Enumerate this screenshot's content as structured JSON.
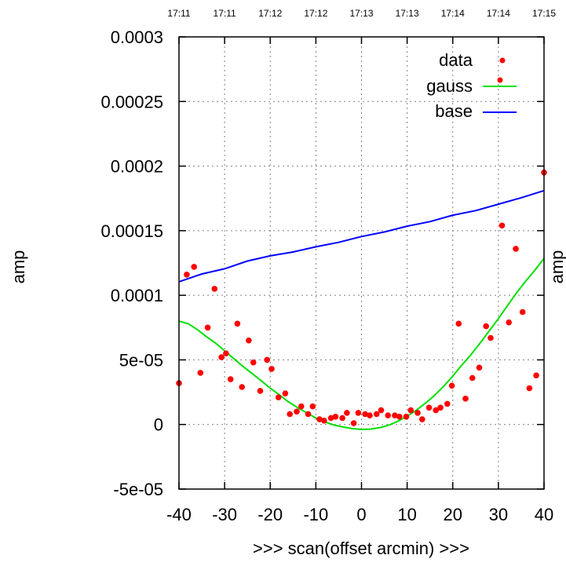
{
  "chart_data": {
    "type": "scatter",
    "xlabel": ">>> scan(offset arcmin) >>>",
    "ylabel": "amp",
    "ylabel_right": "amp",
    "xlim": [
      -40,
      40
    ],
    "ylim": [
      -5e-05,
      0.0003
    ],
    "grid": true,
    "legend_position": "top-right",
    "x_ticks": [
      -40,
      -30,
      -20,
      -10,
      0,
      10,
      20,
      30,
      40
    ],
    "x_tick_labels": [
      "-40",
      "-30",
      "-20",
      "-10",
      "0",
      "10",
      "20",
      "30",
      "40"
    ],
    "y_ticks": [
      -5e-05,
      0,
      5e-05,
      0.0001,
      0.00015,
      0.0002,
      0.00025,
      0.0003
    ],
    "y_tick_labels": [
      "-5e-05",
      "0",
      "5e-05",
      "0.0001",
      "0.00015",
      "0.0002",
      "0.00025",
      "0.0003"
    ],
    "top_time_labels": [
      "17:11",
      "17:11",
      "17:12",
      "17:12",
      "17:13",
      "17:13",
      "17:14",
      "17:14",
      "17:15"
    ],
    "colors": {
      "data": "#ff0000",
      "gauss": "#00e000",
      "base": "#0000ff",
      "grid": "#808080"
    },
    "series": [
      {
        "name": "data",
        "style": "points",
        "points": [
          [
            -40,
            3.2e-05
          ],
          [
            -38.3,
            0.000116
          ],
          [
            -36.7,
            0.000122
          ],
          [
            -35.3,
            4e-05
          ],
          [
            -33.7,
            7.5e-05
          ],
          [
            -32.2,
            0.000105
          ],
          [
            -30.7,
            5.2e-05
          ],
          [
            -29.7,
            5.5e-05
          ],
          [
            -28.7,
            3.5e-05
          ],
          [
            -27.2,
            7.8e-05
          ],
          [
            -26.2,
            2.9e-05
          ],
          [
            -24.7,
            6.5e-05
          ],
          [
            -23.7,
            4.8e-05
          ],
          [
            -22.2,
            2.6e-05
          ],
          [
            -20.7,
            5e-05
          ],
          [
            -19.7,
            4.3e-05
          ],
          [
            -18.2,
            2.1e-05
          ],
          [
            -16.7,
            2.4e-05
          ],
          [
            -15.7,
            8e-06
          ],
          [
            -14.2,
            1e-05
          ],
          [
            -13.2,
            1.4e-05
          ],
          [
            -11.7,
            8e-06
          ],
          [
            -10.7,
            1.4e-05
          ],
          [
            -9.2,
            4e-06
          ],
          [
            -8.2,
            3e-06
          ],
          [
            -6.7,
            5e-06
          ],
          [
            -5.7,
            6e-06
          ],
          [
            -4.2,
            5e-06
          ],
          [
            -3.2,
            9e-06
          ],
          [
            -1.7,
            1e-06
          ],
          [
            -0.7,
            9e-06
          ],
          [
            0.8,
            8e-06
          ],
          [
            1.8,
            7e-06
          ],
          [
            3.3,
            8e-06
          ],
          [
            4.3,
            1.1e-05
          ],
          [
            5.8,
            7e-06
          ],
          [
            7.3,
            7e-06
          ],
          [
            8.3,
            6e-06
          ],
          [
            9.8,
            6e-06
          ],
          [
            10.8,
            1.1e-05
          ],
          [
            12.3,
            9e-06
          ],
          [
            13.3,
            4e-06
          ],
          [
            14.8,
            1.3e-05
          ],
          [
            16.3,
            1.1e-05
          ],
          [
            17.3,
            1.3e-05
          ],
          [
            18.8,
            1.6e-05
          ],
          [
            19.8,
            3e-05
          ],
          [
            21.3,
            7.8e-05
          ],
          [
            22.8,
            2e-05
          ],
          [
            24.3,
            3.6e-05
          ],
          [
            25.8,
            4.4e-05
          ],
          [
            27.3,
            7.6e-05
          ],
          [
            28.3,
            6.7e-05
          ],
          [
            30.8,
            0.000154
          ],
          [
            32.3,
            7.9e-05
          ],
          [
            33.8,
            0.000136
          ],
          [
            35.3,
            8.7e-05
          ],
          [
            36.8,
            2.8e-05
          ],
          [
            38.3,
            3.8e-05
          ],
          [
            40,
            0.000195
          ]
        ]
      },
      {
        "name": "gauss",
        "style": "line",
        "points": [
          [
            -40,
            8e-05
          ],
          [
            -38,
            7.8e-05
          ],
          [
            -36,
            7.35e-05
          ],
          [
            -34,
            6.8e-05
          ],
          [
            -32,
            6.3e-05
          ],
          [
            -30,
            5.7e-05
          ],
          [
            -28,
            5.1e-05
          ],
          [
            -26,
            4.5e-05
          ],
          [
            -24,
            3.95e-05
          ],
          [
            -22,
            3.4e-05
          ],
          [
            -20,
            2.8e-05
          ],
          [
            -18,
            2.3e-05
          ],
          [
            -16,
            1.75e-05
          ],
          [
            -14,
            1.3e-05
          ],
          [
            -12,
            9e-06
          ],
          [
            -10,
            5e-06
          ],
          [
            -8,
            2e-06
          ],
          [
            -6,
            -5e-07
          ],
          [
            -4,
            -2e-06
          ],
          [
            -2,
            -3.2e-06
          ],
          [
            0,
            -3.8e-06
          ],
          [
            2,
            -3.6e-06
          ],
          [
            4,
            -2.5e-06
          ],
          [
            6,
            -5e-07
          ],
          [
            8,
            2.5e-06
          ],
          [
            10,
            6.5e-06
          ],
          [
            12,
            1.1e-05
          ],
          [
            14,
            1.65e-05
          ],
          [
            16,
            2.25e-05
          ],
          [
            18,
            2.95e-05
          ],
          [
            20,
            3.75e-05
          ],
          [
            22,
            4.6e-05
          ],
          [
            24,
            5.4e-05
          ],
          [
            26,
            6.3e-05
          ],
          [
            28,
            7.25e-05
          ],
          [
            30,
            8.2e-05
          ],
          [
            32,
            9.2e-05
          ],
          [
            34,
            0.000102
          ],
          [
            36,
            0.000111
          ],
          [
            38,
            0.0001195
          ],
          [
            40,
            0.0001285
          ]
        ]
      },
      {
        "name": "base",
        "style": "line",
        "points": [
          [
            -40,
            0.0001105
          ],
          [
            -35,
            0.0001165
          ],
          [
            -30,
            0.0001205
          ],
          [
            -25,
            0.0001265
          ],
          [
            -20,
            0.0001305
          ],
          [
            -15,
            0.0001335
          ],
          [
            -10,
            0.0001375
          ],
          [
            -5,
            0.000141
          ],
          [
            0,
            0.0001455
          ],
          [
            5,
            0.000149
          ],
          [
            10,
            0.0001535
          ],
          [
            15,
            0.000157
          ],
          [
            20,
            0.000162
          ],
          [
            25,
            0.0001655
          ],
          [
            30,
            0.0001705
          ],
          [
            35,
            0.0001755
          ],
          [
            40,
            0.000181
          ]
        ]
      }
    ]
  }
}
